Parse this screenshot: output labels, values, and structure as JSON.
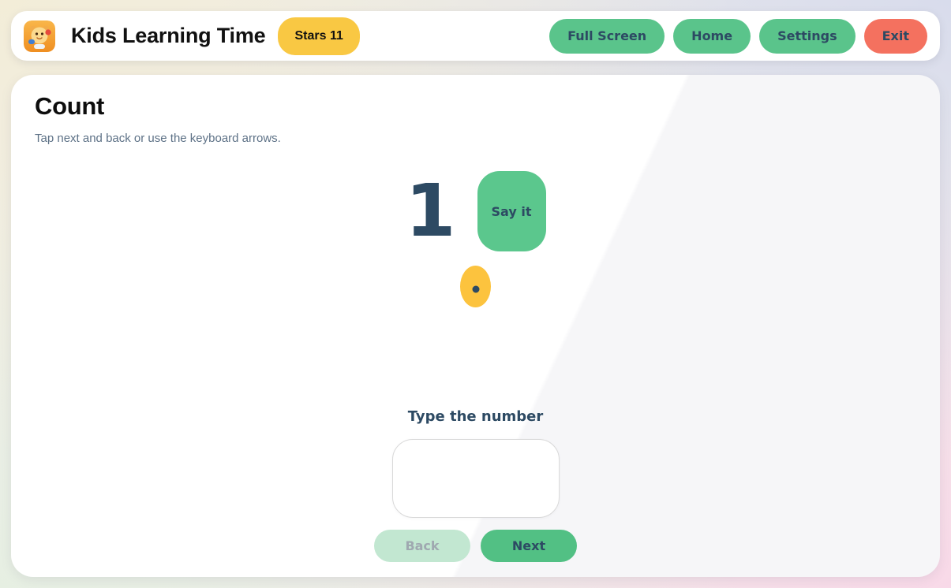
{
  "header": {
    "app_title": "Kids Learning Time",
    "stars_badge": "Stars 11",
    "logo_icon": "lion-cub-app-icon",
    "buttons": [
      {
        "label": "Full Screen"
      },
      {
        "label": "Home"
      },
      {
        "label": "Settings"
      },
      {
        "label": "Exit"
      }
    ]
  },
  "main": {
    "title": "Count",
    "subtitle": "Tap next and back or use the keyboard arrows.",
    "current_number": "1",
    "say_it_label": "Say it",
    "dot_count": 1,
    "input_label": "Type the number",
    "input_value": "",
    "back_label": "Back",
    "next_label": "Next"
  },
  "colors": {
    "button_green": "#5ac48b",
    "exit_red": "#f4715f",
    "badge_yellow": "#f9c843",
    "dot_yellow": "#fcc33e",
    "text_navy": "#2d4a63",
    "disabled_back_green": "#c2e7d1"
  }
}
